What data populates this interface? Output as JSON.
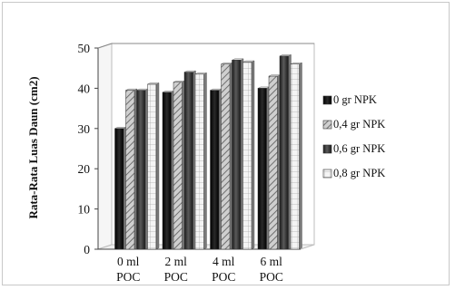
{
  "chart_data": {
    "type": "bar",
    "title": "",
    "ylabel": "Rata-Rata Luas Daun (cm2)",
    "xlabel": "",
    "ylim": [
      0,
      50
    ],
    "yticks": [
      "0",
      "10",
      "20",
      "30",
      "40",
      "50"
    ],
    "categories": [
      [
        "0 ml",
        "POC"
      ],
      [
        "2 ml",
        "POC"
      ],
      [
        "4 ml",
        "POC"
      ],
      [
        "6 ml",
        "POC"
      ]
    ],
    "series": [
      {
        "name": "0 gr NPK",
        "values": [
          30,
          39,
          39.5,
          40
        ],
        "color": "#111111",
        "pattern": "solid"
      },
      {
        "name": "0,4 gr NPK",
        "values": [
          39.5,
          41.5,
          46,
          43
        ],
        "color": "#9a9a9a",
        "pattern": "diagonal"
      },
      {
        "name": "0,6 gr NPK",
        "values": [
          39.5,
          44,
          47,
          48
        ],
        "color": "#3a3a3a",
        "pattern": "dark"
      },
      {
        "name": "0,8 gr NPK",
        "values": [
          41,
          43.5,
          46.5,
          46
        ],
        "color": "#efefef",
        "pattern": "grid"
      }
    ],
    "legend_position": "right",
    "grid": false,
    "style": "3d-clustered"
  }
}
